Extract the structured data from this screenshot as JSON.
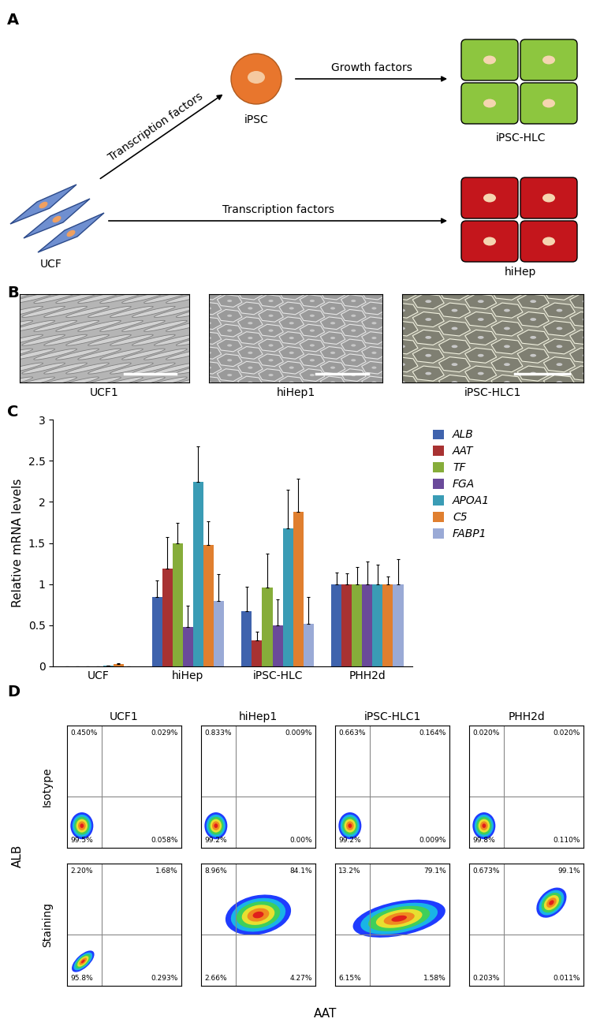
{
  "panel_labels": [
    "A",
    "B",
    "C",
    "D"
  ],
  "diagram": {
    "nodes": {
      "ucf": "UCF",
      "ipsc": "iPSC",
      "hlc": "iPSC-HLC",
      "hihep": "hiHep"
    },
    "edges": [
      {
        "from": "ucf",
        "to": "ipsc",
        "label": "Transcription factors"
      },
      {
        "from": "ipsc",
        "to": "hlc",
        "label": "Growth factors"
      },
      {
        "from": "ucf",
        "to": "hihep",
        "label": "Transcription factors"
      }
    ]
  },
  "micrographs": [
    "UCF1",
    "hiHep1",
    "iPSC-HLC1"
  ],
  "chart_data": {
    "type": "bar",
    "ylabel": "Relative mRNA levels",
    "categories": [
      "UCF",
      "hiHep",
      "iPSC-HLC",
      "PHH2d"
    ],
    "series": [
      {
        "name": "ALB",
        "color": "#3f63ad",
        "values": [
          0.0,
          0.84,
          0.67,
          1.0
        ],
        "errors": [
          0.003,
          0.2,
          0.3,
          0.14
        ]
      },
      {
        "name": "AAT",
        "color": "#a83232",
        "values": [
          0.0,
          1.19,
          0.32,
          1.0
        ],
        "errors": [
          0.003,
          0.38,
          0.1,
          0.13
        ]
      },
      {
        "name": "TF",
        "color": "#86ad3a",
        "values": [
          0.0,
          1.5,
          0.96,
          1.0
        ],
        "errors": [
          0.003,
          0.24,
          0.41,
          0.21
        ]
      },
      {
        "name": "FGA",
        "color": "#6a4a9a",
        "values": [
          0.0,
          0.48,
          0.5,
          1.0
        ],
        "errors": [
          0.003,
          0.26,
          0.31,
          0.27
        ]
      },
      {
        "name": "APOA1",
        "color": "#3a9cb5",
        "values": [
          0.005,
          2.24,
          1.68,
          1.0
        ],
        "errors": [
          0.003,
          0.43,
          0.47,
          0.24
        ]
      },
      {
        "name": "C5",
        "color": "#e07f2f",
        "values": [
          0.03,
          1.48,
          1.88,
          1.0
        ],
        "errors": [
          0.01,
          0.28,
          0.4,
          0.09
        ]
      },
      {
        "name": "FABP1",
        "color": "#9aaad6",
        "values": [
          0.0,
          0.8,
          0.52,
          1.0
        ],
        "errors": [
          0.003,
          0.32,
          0.32,
          0.3
        ]
      }
    ],
    "ylim": [
      0,
      3
    ],
    "yticks": [
      0,
      0.5,
      1,
      1.5,
      2,
      2.5,
      3
    ],
    "grid": false,
    "legend": "upper left"
  },
  "flow": {
    "columns": [
      "UCF1",
      "hiHep1",
      "iPSC-HLC1",
      "PHH2d"
    ],
    "xlabel": "AAT",
    "ylabel": "ALB",
    "rows": [
      {
        "name": "Isotype",
        "quadrants": [
          {
            "top_left": "0.450%",
            "top_right": "0.029%",
            "bottom_left": "99.5%",
            "bottom_right": "0.058%"
          },
          {
            "top_left": "0.833%",
            "top_right": "0.009%",
            "bottom_left": "99.2%",
            "bottom_right": "0.00%"
          },
          {
            "top_left": "0.663%",
            "top_right": "0.164%",
            "bottom_left": "99.2%",
            "bottom_right": "0.009%"
          },
          {
            "top_left": "0.020%",
            "top_right": "0.020%",
            "bottom_left": "99.8%",
            "bottom_right": "0.110%"
          }
        ]
      },
      {
        "name": "Staining",
        "quadrants": [
          {
            "top_left": "2.20%",
            "top_right": "1.68%",
            "bottom_left": "95.8%",
            "bottom_right": "0.293%"
          },
          {
            "top_left": "8.96%",
            "top_right": "84.1%",
            "bottom_left": "2.66%",
            "bottom_right": "4.27%"
          },
          {
            "top_left": "13.2%",
            "top_right": "79.1%",
            "bottom_left": "6.15%",
            "bottom_right": "1.58%"
          },
          {
            "top_left": "0.673%",
            "top_right": "99.1%",
            "bottom_left": "0.203%",
            "bottom_right": "0.011%"
          }
        ]
      }
    ]
  }
}
